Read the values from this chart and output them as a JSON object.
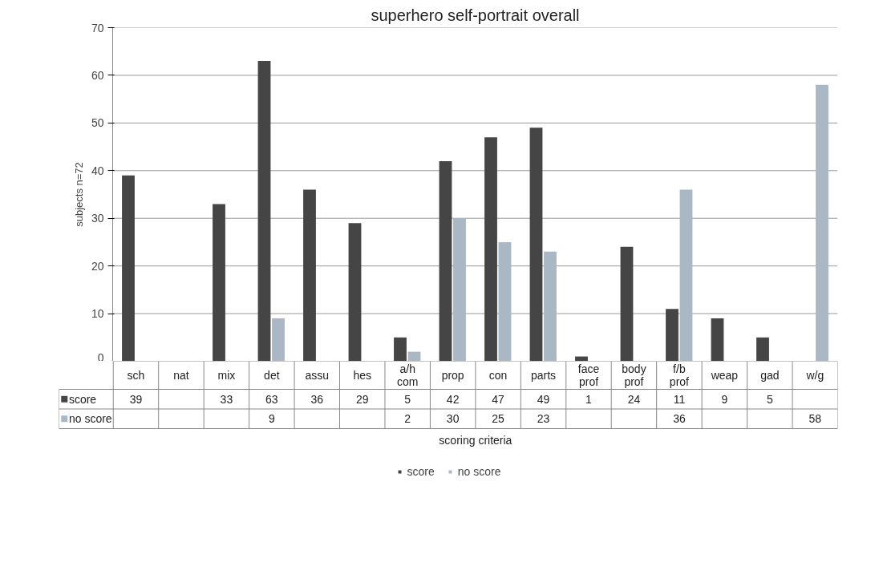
{
  "chart_data": {
    "type": "bar",
    "title": "superhero self-portrait overall",
    "xlabel": "scoring criteria",
    "ylabel": "subjects n=72",
    "categories": [
      "sch",
      "nat",
      "mix",
      "det",
      "assu",
      "hes",
      "a/h com",
      "prop",
      "con",
      "parts",
      "face prof",
      "body prof",
      "f/b prof",
      "weap",
      "gad",
      "w/g"
    ],
    "series": [
      {
        "name": "score",
        "color": "#454545",
        "values": [
          39,
          null,
          33,
          63,
          36,
          29,
          5,
          42,
          47,
          49,
          1,
          24,
          11,
          9,
          5,
          null
        ]
      },
      {
        "name": "no score",
        "color": "#a9b8c4",
        "values": [
          null,
          null,
          null,
          9,
          null,
          null,
          2,
          30,
          25,
          23,
          null,
          null,
          36,
          null,
          null,
          58
        ]
      }
    ],
    "ylim": [
      0,
      70
    ],
    "yticks": [
      0,
      10,
      20,
      30,
      40,
      50,
      60,
      70
    ],
    "grid": "y",
    "legend": "bottom",
    "data_labels": true
  }
}
